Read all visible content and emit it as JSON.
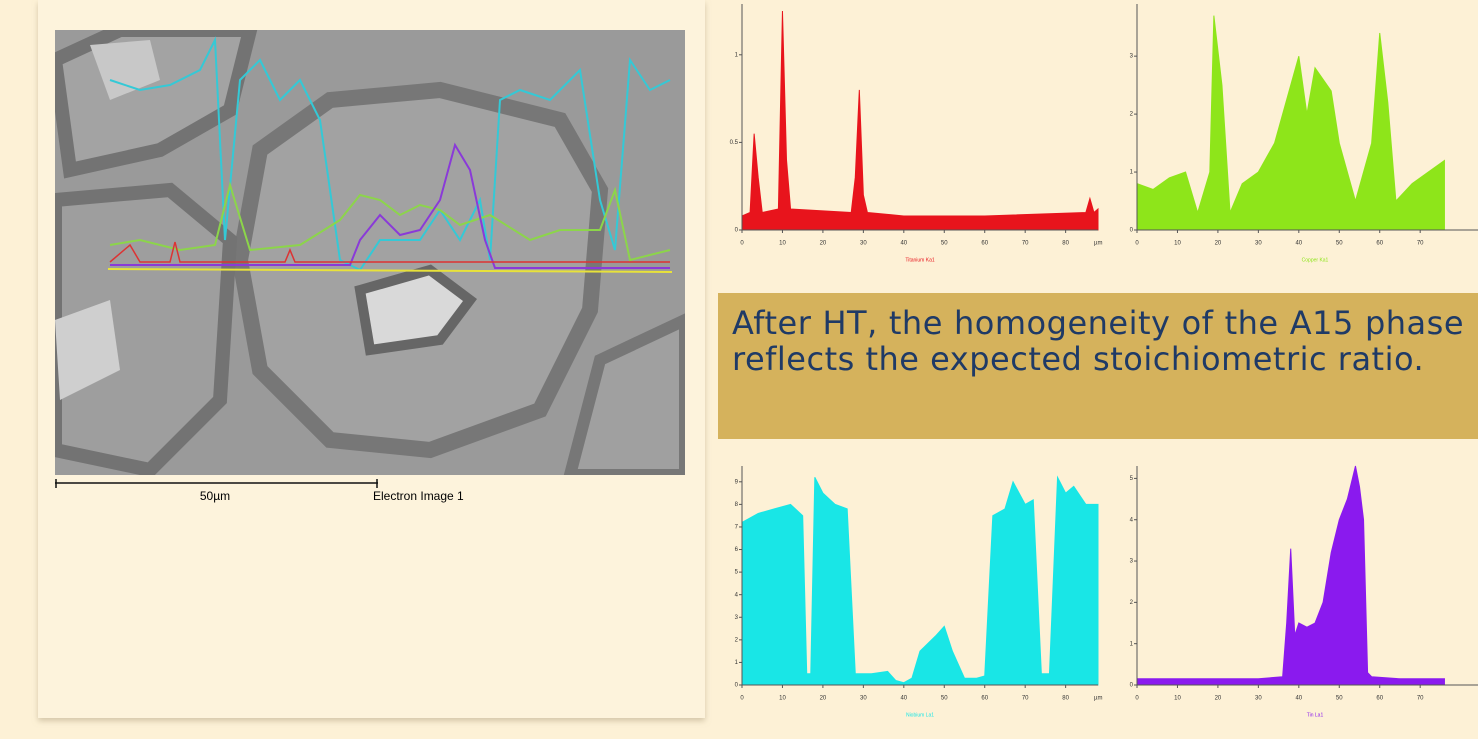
{
  "image_panel": {
    "scale_label": "50µm",
    "image_label": "Electron Image 1"
  },
  "caption": "After HT, the homogeneity of the A15 phase reflects the expected stoichiometric ratio.",
  "chart_data": [
    {
      "type": "area",
      "title": "Titanium Ka1",
      "xlabel": "µm",
      "color": "#e8141c",
      "x": [
        0,
        2,
        3,
        4,
        5,
        9,
        10,
        11,
        12,
        27,
        28,
        29,
        30,
        31,
        40,
        60,
        85,
        86,
        87,
        88
      ],
      "values": [
        0.08,
        0.1,
        0.55,
        0.3,
        0.1,
        0.12,
        1.25,
        0.4,
        0.12,
        0.1,
        0.3,
        0.8,
        0.2,
        0.1,
        0.08,
        0.08,
        0.1,
        0.18,
        0.1,
        0.12
      ],
      "xlim": [
        0,
        88
      ],
      "xticks": [
        0,
        10,
        20,
        30,
        40,
        50,
        60,
        70,
        80
      ],
      "ylim": [
        0,
        1.29
      ],
      "yticks": [
        0,
        0.5,
        1
      ]
    },
    {
      "type": "area",
      "title": "Copper Ka1",
      "color": "#8ee51a",
      "x": [
        0,
        4,
        8,
        12,
        15,
        18,
        19,
        21,
        23,
        26,
        30,
        34,
        38,
        40,
        42,
        44,
        48,
        50,
        54,
        58,
        60,
        62,
        64,
        68,
        72,
        76
      ],
      "values": [
        0.8,
        0.7,
        0.9,
        1.0,
        0.3,
        1.0,
        3.7,
        2.5,
        0.3,
        0.8,
        1.0,
        1.5,
        2.5,
        3.0,
        2.0,
        2.8,
        2.4,
        1.5,
        0.5,
        1.5,
        3.4,
        2.2,
        0.5,
        0.8,
        1.0,
        1.2
      ],
      "xlim": [
        0,
        88
      ],
      "xticks": [
        0,
        10,
        20,
        30,
        40,
        50,
        60,
        70
      ],
      "ylim": [
        0,
        3.9
      ],
      "yticks": [
        0,
        1,
        2,
        3
      ]
    },
    {
      "type": "area",
      "title": "Niobium La1",
      "xlabel": "µm",
      "color": "#19e6e6",
      "x": [
        0,
        4,
        8,
        12,
        15,
        16,
        17,
        18,
        20,
        23,
        26,
        28,
        32,
        36,
        38,
        40,
        42,
        44,
        48,
        50,
        52,
        55,
        58,
        60,
        62,
        65,
        67,
        70,
        72,
        74,
        76,
        78,
        80,
        82,
        85,
        88
      ],
      "values": [
        7.2,
        7.6,
        7.8,
        8.0,
        7.5,
        0.5,
        0.5,
        9.2,
        8.5,
        8.0,
        7.8,
        0.5,
        0.5,
        0.6,
        0.2,
        0.1,
        0.3,
        1.5,
        2.2,
        2.6,
        1.5,
        0.3,
        0.3,
        0.4,
        7.5,
        7.8,
        9.0,
        8.0,
        8.2,
        0.5,
        0.5,
        9.2,
        8.5,
        8.8,
        8.0,
        8.0
      ],
      "xlim": [
        0,
        88
      ],
      "xticks": [
        0,
        10,
        20,
        30,
        40,
        50,
        60,
        70,
        80
      ],
      "ylim": [
        0,
        9.7
      ],
      "yticks": [
        0,
        1,
        2,
        3,
        4,
        5,
        6,
        7,
        8,
        9
      ]
    },
    {
      "type": "area",
      "title": "Tin La1",
      "color": "#8a1aee",
      "x": [
        0,
        10,
        20,
        30,
        36,
        37,
        38,
        39,
        40,
        42,
        44,
        46,
        48,
        50,
        52,
        54,
        55,
        56,
        57,
        58,
        65,
        76
      ],
      "values": [
        0.15,
        0.15,
        0.15,
        0.15,
        0.2,
        1.5,
        3.3,
        1.2,
        1.5,
        1.4,
        1.5,
        2.0,
        3.2,
        4.0,
        4.5,
        5.3,
        4.8,
        4.0,
        0.3,
        0.2,
        0.15,
        0.15
      ],
      "xlim": [
        0,
        88
      ],
      "xticks": [
        0,
        10,
        20,
        30,
        40,
        50,
        60,
        70
      ],
      "ylim": [
        0,
        5.3
      ],
      "yticks": [
        0,
        1,
        2,
        3,
        4,
        5
      ]
    }
  ]
}
